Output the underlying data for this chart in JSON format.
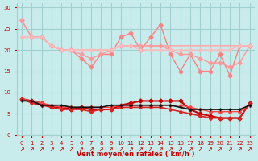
{
  "bg_color": "#c8ecec",
  "grid_color": "#a0d0d0",
  "xlabel": "Vent moyen/en rafales ( km/h )",
  "xlabel_color": "#cc0000",
  "tick_color": "#cc0000",
  "xlim": [
    -0.5,
    23.5
  ],
  "ylim": [
    0,
    31
  ],
  "yticks": [
    0,
    5,
    10,
    15,
    20,
    25,
    30
  ],
  "xticks": [
    0,
    1,
    2,
    3,
    4,
    5,
    6,
    7,
    8,
    9,
    10,
    11,
    12,
    13,
    14,
    15,
    16,
    17,
    18,
    19,
    20,
    21,
    22,
    23
  ],
  "lines": [
    {
      "y": [
        27,
        23,
        23,
        21,
        20,
        20,
        18,
        16,
        19,
        19,
        23,
        24,
        20,
        23,
        26,
        19,
        15,
        19,
        15,
        15,
        19,
        14,
        21,
        21
      ],
      "color": "#ff8080",
      "lw": 1.0,
      "marker": "D",
      "ms": 2.5
    },
    {
      "y": [
        23,
        23,
        23,
        21,
        20,
        20,
        20,
        20,
        20,
        20,
        21,
        21,
        21,
        21,
        21,
        21,
        21,
        21,
        21,
        21,
        21,
        21,
        21,
        21
      ],
      "color": "#ffaaaa",
      "lw": 1.2,
      "marker": null,
      "ms": 0
    },
    {
      "y": [
        27,
        23,
        23,
        21,
        20,
        20,
        19,
        18,
        19,
        20,
        21,
        21,
        21,
        21,
        21,
        20,
        19,
        19,
        18,
        17,
        17,
        16,
        17,
        21
      ],
      "color": "#ff9999",
      "lw": 1.0,
      "marker": "D",
      "ms": 2.5
    },
    {
      "y": [
        23,
        23,
        23,
        21,
        20,
        20,
        20,
        20,
        20,
        20,
        21,
        21,
        20,
        20,
        20,
        20,
        20,
        20,
        20,
        20,
        20,
        20,
        21,
        21
      ],
      "color": "#ffbbbb",
      "lw": 1.0,
      "marker": "D",
      "ms": 2.0
    },
    {
      "y": [
        8.5,
        8,
        7.5,
        6.5,
        6.5,
        6,
        6.5,
        6,
        6,
        6,
        7,
        7.5,
        8,
        8,
        8,
        8,
        8,
        6,
        5,
        4.5,
        4,
        4,
        4,
        7.5
      ],
      "color": "#cc0000",
      "lw": 1.5,
      "marker": "D",
      "ms": 2.5
    },
    {
      "y": [
        8.5,
        8,
        7.5,
        7,
        6.5,
        6.5,
        6.5,
        6.5,
        6.5,
        6.5,
        7,
        7,
        7,
        7,
        7,
        7,
        7,
        6.5,
        6,
        5.5,
        5.5,
        5.5,
        5.5,
        7
      ],
      "color": "#ff4444",
      "lw": 1.0,
      "marker": "D",
      "ms": 2.0
    },
    {
      "y": [
        8.5,
        7.5,
        7,
        6.5,
        6,
        6,
        6,
        5.5,
        6,
        6,
        6.5,
        6.5,
        6.5,
        6.5,
        6.5,
        6,
        5.5,
        5,
        4.5,
        4,
        4,
        4,
        4,
        7.5
      ],
      "color": "#dd2222",
      "lw": 1.2,
      "marker": "D",
      "ms": 2.0
    },
    {
      "y": [
        8,
        8,
        7,
        7,
        7,
        6.5,
        6.5,
        6.5,
        6.5,
        7,
        7,
        7,
        7,
        7,
        7,
        7,
        6.5,
        6,
        6,
        6,
        6,
        6,
        6,
        7
      ],
      "color": "#111111",
      "lw": 1.2,
      "marker": "+",
      "ms": 3.0
    }
  ],
  "arrow_symbol": "↗",
  "arrow_color": "#cc0000",
  "arrow_fontsize": 6
}
